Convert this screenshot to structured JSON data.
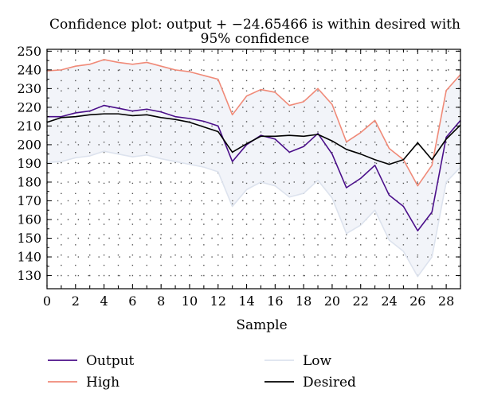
{
  "chart_data": {
    "type": "line",
    "title": "Confidence plot: output + −24.65466 is within desired with 95% confidence",
    "title_lines": [
      "Confidence plot: output + −24.65466 is within desired with",
      "95% confidence"
    ],
    "xlabel": "Sample",
    "ylabel": "",
    "xlim": [
      0,
      29
    ],
    "ylim": [
      123,
      251
    ],
    "x_ticks": [
      "0",
      "2",
      "4",
      "6",
      "8",
      "10",
      "12",
      "14",
      "16",
      "18",
      "20",
      "22",
      "24",
      "26",
      "28"
    ],
    "y_ticks": [
      "130",
      "140",
      "150",
      "160",
      "170",
      "180",
      "190",
      "200",
      "210",
      "220",
      "230",
      "240",
      "250"
    ],
    "grid": true,
    "legend_position": "bottom",
    "x": [
      0,
      1,
      2,
      3,
      4,
      5,
      6,
      7,
      8,
      9,
      10,
      11,
      12,
      13,
      14,
      15,
      16,
      17,
      18,
      19,
      20,
      21,
      22,
      23,
      24,
      25,
      26,
      27,
      28,
      29
    ],
    "series": [
      {
        "name": "Output",
        "color": "#4b0f8a",
        "values": [
          215,
          215,
          217,
          218,
          221,
          219.5,
          218,
          219,
          217.5,
          215,
          214,
          212.5,
          210,
          191,
          200,
          205,
          203,
          196,
          199,
          206,
          195,
          177,
          182,
          189,
          173,
          167,
          154,
          164,
          204,
          213
        ]
      },
      {
        "name": "High",
        "color": "#f08a78",
        "values": [
          239.5,
          240,
          242,
          243,
          245.5,
          244,
          243,
          244,
          242,
          240,
          239,
          237,
          235,
          216,
          226,
          229.5,
          228,
          221,
          223,
          230,
          221.5,
          201.5,
          206.5,
          213,
          198,
          192,
          178,
          189,
          229,
          237.5
        ]
      },
      {
        "name": "Low",
        "color": "#dde3ee",
        "values": [
          190.5,
          191,
          193,
          194,
          196.5,
          195,
          193.5,
          194.5,
          192.5,
          191,
          189.5,
          188,
          185.5,
          167,
          176,
          180,
          178,
          172,
          174,
          181,
          171.5,
          152.5,
          157,
          165,
          149,
          143,
          129.5,
          140,
          180,
          188
        ]
      },
      {
        "name": "Desired",
        "color": "#000000",
        "values": [
          212,
          214.5,
          215,
          216,
          216.5,
          216.5,
          215.5,
          216,
          214.5,
          213.5,
          212,
          209.5,
          207,
          196,
          200.5,
          204.5,
          204.5,
          205,
          204.5,
          205.5,
          202,
          197.5,
          195,
          192,
          189.5,
          192,
          201,
          192,
          203,
          210.5
        ]
      }
    ],
    "legend": [
      {
        "name": "Output",
        "color": "#4b0f8a"
      },
      {
        "name": "High",
        "color": "#f08a78"
      },
      {
        "name": "Low",
        "color": "#dde3ee"
      },
      {
        "name": "Desired",
        "color": "#000000"
      }
    ]
  }
}
